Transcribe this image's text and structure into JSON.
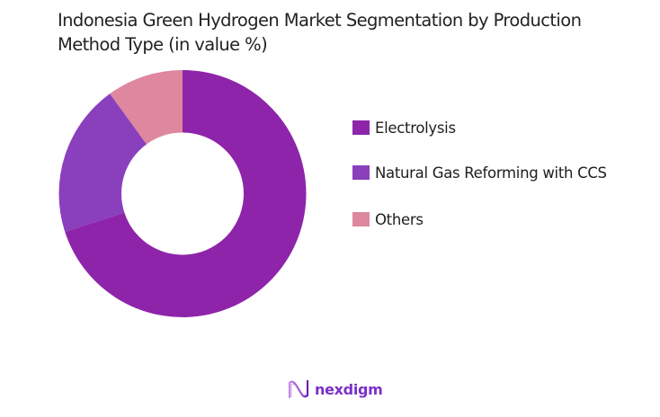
{
  "title": "Indonesia Green Hydrogen Market Segmentation by Production Method Type (in value %)",
  "chart_data": {
    "type": "pie",
    "variant": "donut",
    "title": "Indonesia Green Hydrogen Market Segmentation by Production Method Type (in value %)",
    "categories": [
      "Electrolysis",
      "Natural Gas Reforming with CCS",
      "Others"
    ],
    "values": [
      70,
      20,
      10
    ],
    "colors": [
      "#8e24aa",
      "#8a3fbd",
      "#de879f"
    ],
    "unit": "%",
    "legend_position": "right",
    "data_labels": false
  },
  "legend": {
    "items": [
      {
        "label": "Electrolysis",
        "color": "#8e24aa"
      },
      {
        "label": "Natural Gas Reforming with CCS",
        "color": "#8a3fbd"
      },
      {
        "label": "Others",
        "color": "#de879f"
      }
    ]
  },
  "branding": {
    "logo_text": "nexdigm",
    "logo_icon": "wave-n-icon",
    "color": "#7b2fc9"
  }
}
